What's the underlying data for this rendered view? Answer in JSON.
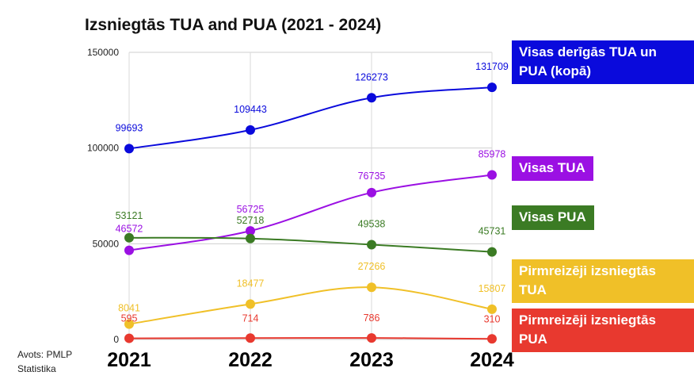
{
  "chart_data": {
    "type": "line",
    "title": "Izsniegtās TUA and PUA (2021 - 2024)",
    "xlabel": "",
    "ylabel": "",
    "ylim": [
      0,
      150000
    ],
    "yticks": [
      0,
      50000,
      100000,
      150000
    ],
    "ytick_labels": [
      "0",
      "50000",
      "100000",
      "150000"
    ],
    "categories": [
      "2021",
      "2022",
      "2023",
      "2024"
    ],
    "grid": true,
    "legend_position": "right",
    "series": [
      {
        "name": "Visas derīgās TUA un PUA (kopā)",
        "color": "#0a0adc",
        "values": [
          99693,
          109443,
          126273,
          131709
        ],
        "labels": [
          "99693",
          "109443",
          "126273",
          "131709"
        ]
      },
      {
        "name": "Visas TUA",
        "color": "#9b10e3",
        "values": [
          46572,
          56725,
          76735,
          85978
        ],
        "labels": [
          "46572",
          "56725",
          "76735",
          "85978"
        ]
      },
      {
        "name": "Visas PUA",
        "color": "#3b7b24",
        "values": [
          53121,
          52718,
          49538,
          45731
        ],
        "labels": [
          "53121",
          "52718",
          "49538",
          "45731"
        ]
      },
      {
        "name": "Pirmreizēji izsniegtās TUA",
        "color": "#f0c028",
        "values": [
          8041,
          18477,
          27266,
          15807
        ],
        "labels": [
          "8041",
          "18477",
          "27266",
          "15807"
        ]
      },
      {
        "name": "Pirmreizēji izsniegtās PUA",
        "color": "#e8392f",
        "values": [
          595,
          714,
          786,
          310
        ],
        "labels": [
          "595",
          "714",
          "786",
          "310"
        ]
      }
    ]
  },
  "source_note": "Avots: PMLP Statistika"
}
